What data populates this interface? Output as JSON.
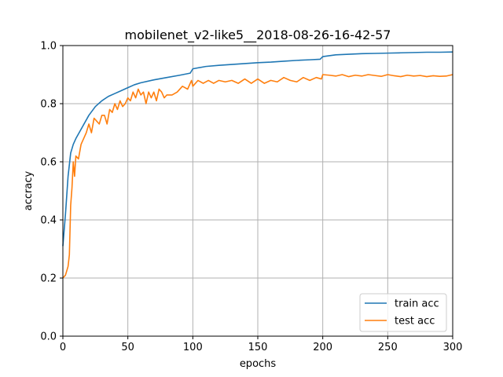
{
  "chart_data": {
    "type": "line",
    "title": "mobilenet_v2-like5__2018-08-26-16-42-57",
    "xlabel": "epochs",
    "ylabel": "accracy",
    "xlim": [
      0,
      300
    ],
    "ylim": [
      0.0,
      1.0
    ],
    "xticks": [
      "0",
      "50",
      "100",
      "150",
      "200",
      "250",
      "300"
    ],
    "yticks": [
      "0.0",
      "0.2",
      "0.4",
      "0.6",
      "0.8",
      "1.0"
    ],
    "grid": true,
    "legend_position": "lower-right",
    "series": [
      {
        "name": "train acc",
        "color": "#1f77b4",
        "x": [
          0,
          2,
          4,
          6,
          8,
          10,
          15,
          20,
          25,
          30,
          35,
          40,
          45,
          50,
          55,
          60,
          70,
          80,
          90,
          98,
          100,
          110,
          120,
          130,
          140,
          150,
          160,
          170,
          180,
          190,
          198,
          200,
          210,
          220,
          230,
          240,
          250,
          260,
          270,
          280,
          290,
          300
        ],
        "y": [
          0.31,
          0.42,
          0.55,
          0.63,
          0.66,
          0.68,
          0.72,
          0.76,
          0.79,
          0.81,
          0.825,
          0.835,
          0.845,
          0.855,
          0.865,
          0.872,
          0.882,
          0.89,
          0.898,
          0.905,
          0.92,
          0.928,
          0.932,
          0.935,
          0.938,
          0.941,
          0.943,
          0.946,
          0.949,
          0.951,
          0.953,
          0.962,
          0.968,
          0.97,
          0.972,
          0.973,
          0.974,
          0.975,
          0.976,
          0.977,
          0.977,
          0.978
        ]
      },
      {
        "name": "test acc",
        "color": "#ff7f0e",
        "x": [
          0,
          2,
          4,
          5,
          6,
          7,
          8,
          9,
          10,
          12,
          14,
          16,
          18,
          20,
          22,
          24,
          26,
          28,
          30,
          32,
          34,
          36,
          38,
          40,
          42,
          44,
          46,
          48,
          50,
          52,
          54,
          56,
          58,
          60,
          62,
          64,
          66,
          68,
          70,
          72,
          74,
          76,
          78,
          80,
          84,
          88,
          92,
          96,
          99,
          100,
          104,
          108,
          112,
          116,
          120,
          125,
          130,
          135,
          140,
          145,
          150,
          155,
          160,
          165,
          170,
          175,
          180,
          185,
          190,
          195,
          199,
          200,
          205,
          210,
          215,
          220,
          225,
          230,
          235,
          240,
          245,
          250,
          255,
          260,
          265,
          270,
          275,
          280,
          285,
          290,
          295,
          300
        ],
        "y": [
          0.2,
          0.21,
          0.24,
          0.28,
          0.45,
          0.51,
          0.6,
          0.55,
          0.62,
          0.61,
          0.66,
          0.68,
          0.7,
          0.73,
          0.7,
          0.75,
          0.74,
          0.73,
          0.76,
          0.76,
          0.73,
          0.78,
          0.77,
          0.8,
          0.78,
          0.81,
          0.79,
          0.8,
          0.82,
          0.81,
          0.84,
          0.82,
          0.85,
          0.83,
          0.84,
          0.8,
          0.84,
          0.82,
          0.84,
          0.81,
          0.85,
          0.84,
          0.82,
          0.83,
          0.83,
          0.84,
          0.86,
          0.85,
          0.88,
          0.86,
          0.88,
          0.87,
          0.88,
          0.87,
          0.88,
          0.875,
          0.88,
          0.87,
          0.885,
          0.87,
          0.885,
          0.87,
          0.88,
          0.875,
          0.89,
          0.88,
          0.875,
          0.89,
          0.88,
          0.89,
          0.885,
          0.9,
          0.898,
          0.895,
          0.9,
          0.893,
          0.898,
          0.895,
          0.9,
          0.897,
          0.894,
          0.9,
          0.896,
          0.893,
          0.898,
          0.895,
          0.897,
          0.893,
          0.896,
          0.894,
          0.895,
          0.9
        ]
      }
    ]
  }
}
